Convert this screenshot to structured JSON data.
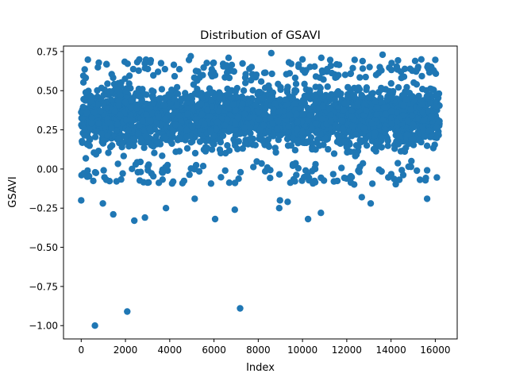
{
  "chart_data": {
    "type": "scatter",
    "title": "Distribution of GSAVI",
    "xlabel": "Index",
    "ylabel": "GSAVI",
    "xlim": [
      -800,
      16990
    ],
    "ylim": [
      -1.085,
      0.785
    ],
    "xticks": [
      0,
      2000,
      4000,
      6000,
      8000,
      10000,
      12000,
      14000,
      16000
    ],
    "xtick_labels": [
      "0",
      "2000",
      "4000",
      "6000",
      "8000",
      "10000",
      "12000",
      "14000",
      "16000"
    ],
    "yticks": [
      -1.0,
      -0.75,
      -0.5,
      -0.25,
      0.0,
      0.25,
      0.5,
      0.75
    ],
    "ytick_labels": [
      "−1.00",
      "−0.75",
      "−0.50",
      "−0.25",
      "0.00",
      "0.25",
      "0.50",
      "0.75"
    ],
    "grid": false,
    "marker_color": "#1f77b4",
    "n_points": 16191,
    "dense_band": {
      "x_range": [
        0,
        16190
      ],
      "y_range": [
        0.05,
        0.6
      ]
    },
    "outliers": [
      {
        "x": 620,
        "y": -1.0
      },
      {
        "x": 2080,
        "y": -0.91
      },
      {
        "x": 7180,
        "y": -0.89
      },
      {
        "x": 0,
        "y": -0.2
      },
      {
        "x": 980,
        "y": -0.22
      },
      {
        "x": 1450,
        "y": -0.29
      },
      {
        "x": 2400,
        "y": -0.33
      },
      {
        "x": 2880,
        "y": -0.31
      },
      {
        "x": 3830,
        "y": -0.25
      },
      {
        "x": 5130,
        "y": -0.19
      },
      {
        "x": 6050,
        "y": -0.32
      },
      {
        "x": 6940,
        "y": -0.26
      },
      {
        "x": 8950,
        "y": -0.25
      },
      {
        "x": 8980,
        "y": -0.2
      },
      {
        "x": 9330,
        "y": -0.21
      },
      {
        "x": 10250,
        "y": -0.32
      },
      {
        "x": 10830,
        "y": -0.28
      },
      {
        "x": 12680,
        "y": -0.18
      },
      {
        "x": 13080,
        "y": -0.22
      },
      {
        "x": 15630,
        "y": -0.19
      },
      {
        "x": 4950,
        "y": 0.72
      },
      {
        "x": 6660,
        "y": 0.71
      },
      {
        "x": 8590,
        "y": 0.74
      },
      {
        "x": 10850,
        "y": 0.71
      },
      {
        "x": 13620,
        "y": 0.73
      },
      {
        "x": 15370,
        "y": 0.7
      }
    ]
  }
}
